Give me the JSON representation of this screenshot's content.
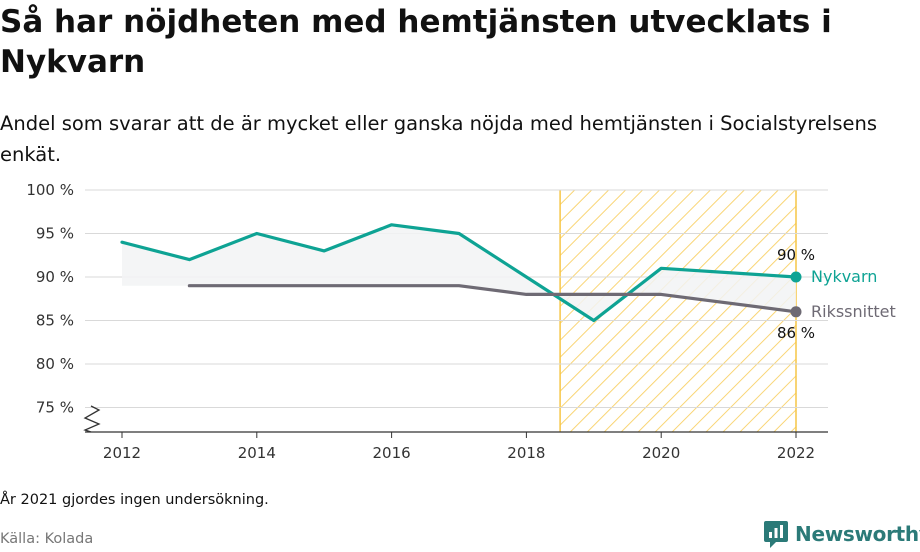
{
  "title": "Så har nöjdheten med hemtjänsten utvecklats i Nykvarn",
  "subtitle": "Andel som svarar att de är mycket eller ganska nöjda med hemtjänsten i Socialstyrelsens enkät.",
  "note": "År 2021 gjordes ingen undersökning.",
  "source": "Källa: Kolada",
  "brand": "Newsworthy",
  "colors": {
    "nykvarn": "#0ea394",
    "riksnittet": "#6e6a74",
    "highlight": "#f6c647",
    "grid": "#d9d9d9",
    "brand": "#2b7a78"
  },
  "chart_data": {
    "type": "line",
    "x_ticks": [
      "2012",
      "2014",
      "2016",
      "2018",
      "2020",
      "2022"
    ],
    "y_ticks": [
      "75 %",
      "80 %",
      "85 %",
      "90 %",
      "95 %",
      "100 %"
    ],
    "ylim": [
      75,
      100
    ],
    "xlim": [
      2011.5,
      2022.5
    ],
    "y_axis_broken": true,
    "highlight_range": [
      2018.5,
      2022
    ],
    "series": [
      {
        "name": "Nykvarn",
        "color": "#0ea394",
        "points": [
          [
            2012,
            94
          ],
          [
            2013,
            92
          ],
          [
            2014,
            95
          ],
          [
            2015,
            93
          ],
          [
            2016,
            96
          ],
          [
            2017,
            95
          ],
          [
            2018,
            90
          ],
          [
            2019,
            85
          ],
          [
            2020,
            91
          ],
          [
            2022,
            90
          ]
        ],
        "end_label": "90 %"
      },
      {
        "name": "Rikssnittet",
        "color": "#6e6a74",
        "points": [
          [
            2013,
            89
          ],
          [
            2014,
            89
          ],
          [
            2015,
            89
          ],
          [
            2016,
            89
          ],
          [
            2017,
            89
          ],
          [
            2018,
            88
          ],
          [
            2019,
            88
          ],
          [
            2020,
            88
          ],
          [
            2022,
            86
          ]
        ],
        "end_label": "86 %"
      }
    ]
  }
}
